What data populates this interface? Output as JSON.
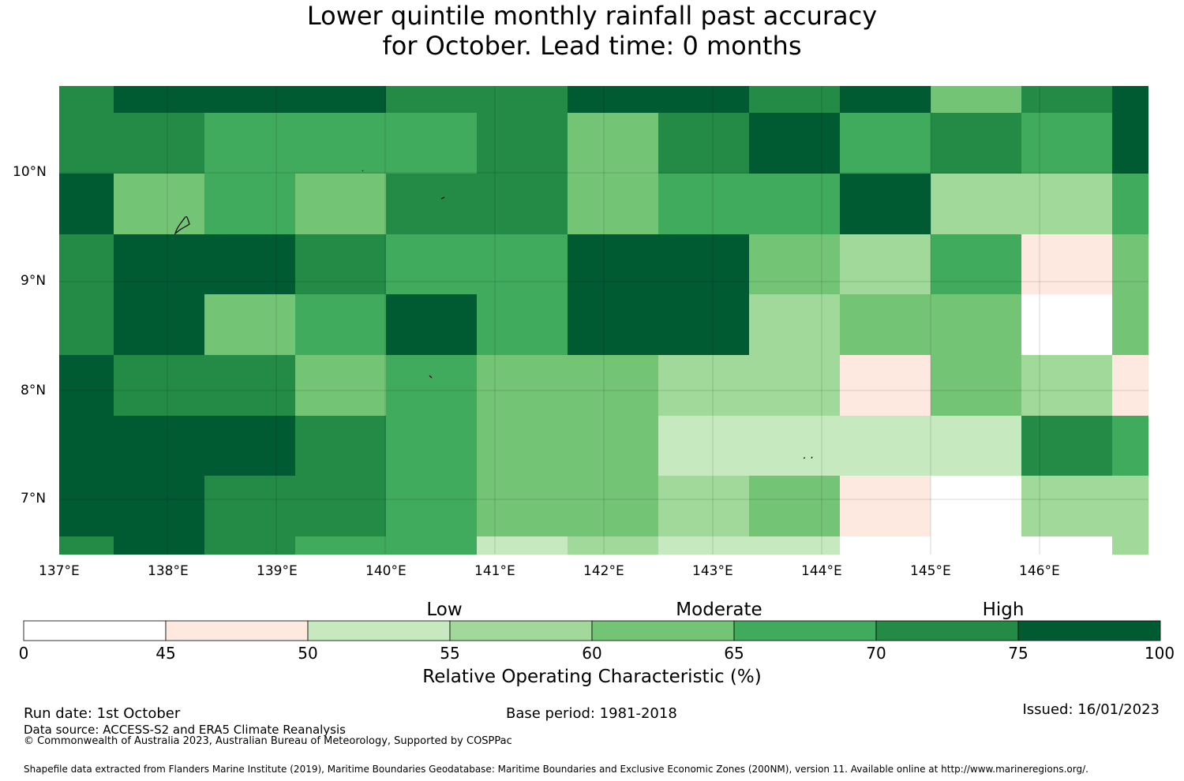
{
  "title_line1": "Lower quintile monthly rainfall past accuracy",
  "title_line2": "for October. Lead time: 0 months",
  "map": {
    "lon_labels": [
      "137°E",
      "138°E",
      "139°E",
      "140°E",
      "141°E",
      "142°E",
      "143°E",
      "144°E",
      "145°E",
      "146°E"
    ],
    "lat_labels": [
      "10°N",
      "9°N",
      "8°N",
      "7°N"
    ],
    "grid_values": [
      [
        72,
        78,
        78,
        78,
        72,
        72,
        78,
        78,
        72,
        78,
        62,
        72,
        78
      ],
      [
        72,
        72,
        67,
        67,
        67,
        72,
        62,
        72,
        78,
        67,
        72,
        67,
        78
      ],
      [
        78,
        62,
        67,
        62,
        72,
        72,
        62,
        67,
        67,
        78,
        57,
        57,
        67
      ],
      [
        72,
        78,
        78,
        72,
        67,
        67,
        78,
        78,
        62,
        57,
        67,
        47,
        62
      ],
      [
        72,
        78,
        62,
        67,
        78,
        67,
        78,
        78,
        57,
        62,
        62,
        40,
        62
      ],
      [
        78,
        72,
        72,
        62,
        67,
        62,
        62,
        57,
        57,
        47,
        62,
        57,
        47
      ],
      [
        78,
        78,
        78,
        72,
        67,
        62,
        62,
        52,
        52,
        52,
        52,
        72,
        67
      ],
      [
        78,
        78,
        72,
        72,
        67,
        62,
        62,
        57,
        62,
        47,
        40,
        57,
        57
      ],
      [
        72,
        78,
        72,
        67,
        67,
        52,
        57,
        52,
        52,
        40,
        40,
        40,
        57
      ]
    ]
  },
  "colorbar": {
    "categories": [
      "Low",
      "Moderate",
      "High"
    ],
    "ticks": [
      "0",
      "45",
      "50",
      "55",
      "60",
      "65",
      "70",
      "75",
      "100"
    ],
    "colors": [
      "#ffffff",
      "#fee9e0",
      "#c7e9c0",
      "#a1d99b",
      "#74c476",
      "#41ab5d",
      "#238b45",
      "#005a32"
    ],
    "title": "Relative Operating Characteristic (%)"
  },
  "footer": {
    "run_date": "Run date: 1st October",
    "base_period": "Base period: 1981-2018",
    "issued": "Issued: 16/01/2023",
    "data_source": "Data source: ACCESS-S2 and ERA5 Climate Reanalysis",
    "copyright": "© Commonwealth of Australia 2023, Australian Bureau of Meteorology, Supported by COSPPac",
    "shapefile": "Shapefile data extracted from Flanders Marine Institute (2019), Maritime Boundaries Geodatabase: Maritime Boundaries and Exclusive Economic Zones (200NM), version 11. Available online at http://www.marineregions.org/."
  }
}
